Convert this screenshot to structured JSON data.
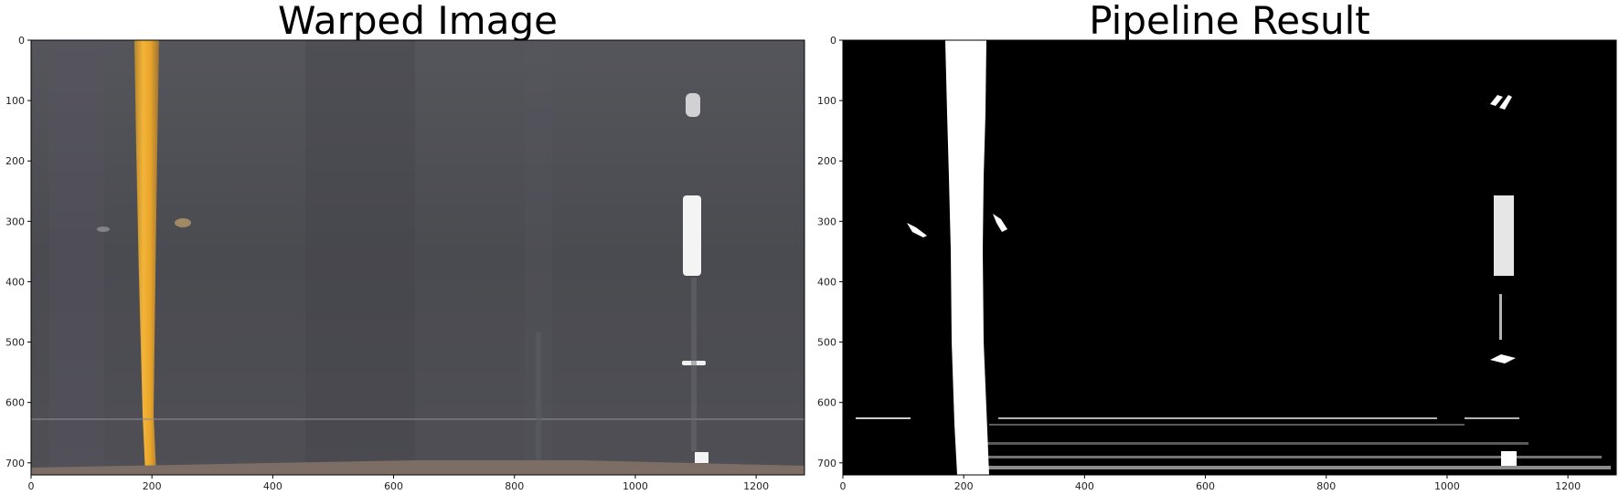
{
  "panels": [
    {
      "title": "Warped Image",
      "image": "perspective-warped road surface: grey asphalt, yellow left lane line, white dashed right lane line",
      "x_ticks": [
        "0",
        "200",
        "400",
        "600",
        "800",
        "1000",
        "1200"
      ],
      "y_ticks": [
        "0",
        "100",
        "200",
        "300",
        "400",
        "500",
        "600",
        "700"
      ],
      "xlim": [
        0,
        1280
      ],
      "ylim": [
        720,
        0
      ]
    },
    {
      "title": "Pipeline Result",
      "image": "binary thresholded lane mask: white lane pixels on black background",
      "x_ticks": [
        "0",
        "200",
        "400",
        "600",
        "800",
        "1000",
        "1200"
      ],
      "y_ticks": [
        "0",
        "100",
        "200",
        "300",
        "400",
        "500",
        "600",
        "700"
      ],
      "xlim": [
        0,
        1280
      ],
      "ylim": [
        720,
        0
      ]
    }
  ],
  "colors": {
    "asphalt": "#4b4b52",
    "yellow_line": "#e0a324",
    "white_line": "#f4f4f4",
    "mask_bg": "#000000",
    "mask_fg": "#ffffff"
  }
}
